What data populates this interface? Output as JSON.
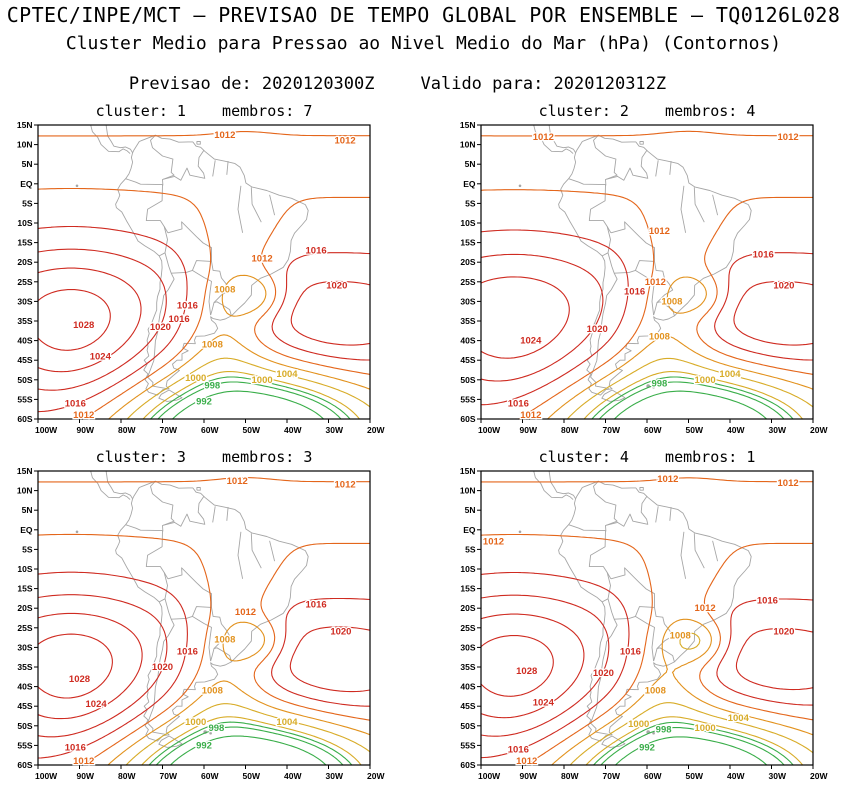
{
  "header": {
    "title": "CPTEC/INPE/MCT — PREVISAO DE TEMPO GLOBAL POR ENSEMBLE — TQ0126L028",
    "subtitle": "Cluster Medio para Pressao ao Nivel Medio do Mar (hPa) (Contornos)",
    "init_label": "Previsao de: 2020120300Z",
    "valid_label": "Valido para: 2020120312Z"
  },
  "chart_data": {
    "type": "contour-map",
    "variable": "Pressao ao Nivel Medio do Mar (hPa)",
    "region": {
      "lon_min": -100,
      "lon_max": -20,
      "lat_min": -60,
      "lat_max": 15
    },
    "map_region": "South America",
    "x_ticks": [
      "100W",
      "90W",
      "80W",
      "70W",
      "60W",
      "50W",
      "40W",
      "30W",
      "20W"
    ],
    "y_ticks": [
      "15N",
      "10N",
      "5N",
      "EQ",
      "5S",
      "10S",
      "15S",
      "20S",
      "25S",
      "30S",
      "35S",
      "40S",
      "45S",
      "50S",
      "55S",
      "60S"
    ],
    "contour_levels": [
      992,
      996,
      998,
      1000,
      1004,
      1008,
      1012,
      1016,
      1020,
      1024,
      1028
    ],
    "level_colors": {
      "992": "#3aae4a",
      "996": "#3aae4a",
      "998": "#3aae4a",
      "1000": "#d8ac28",
      "1004": "#d8ac28",
      "1008": "#e2921e",
      "1012": "#e4661b",
      "1016": "#cf2b21",
      "1020": "#cf2b21",
      "1024": "#cf2b21",
      "1028": "#cf2b21"
    },
    "map_color": "#a6a6a6",
    "panels": [
      {
        "title": "cluster: 1    membros: 7",
        "field": {
          "pac": 16.5,
          "atl": 10,
          "south": -36,
          "selow": -9,
          "tr2": -7,
          "trough": -3
        },
        "labels": [
          {
            "v": "1012",
            "lon": -55,
            "lat": 12.5
          },
          {
            "v": "1012",
            "lon": -26,
            "lat": 11
          },
          {
            "v": "1016",
            "lon": -33,
            "lat": -17
          },
          {
            "v": "1012",
            "lon": -46,
            "lat": -19
          },
          {
            "v": "1008",
            "lon": -55,
            "lat": -27
          },
          {
            "v": "1020",
            "lon": -28,
            "lat": -26
          },
          {
            "v": "1016",
            "lon": -64,
            "lat": -31
          },
          {
            "v": "1028",
            "lon": -89,
            "lat": -36
          },
          {
            "v": "1016",
            "lon": -66,
            "lat": -34.5
          },
          {
            "v": "1020",
            "lon": -70.5,
            "lat": -36.5
          },
          {
            "v": "1008",
            "lon": -58,
            "lat": -41
          },
          {
            "v": "1024",
            "lon": -85,
            "lat": -44
          },
          {
            "v": "1000",
            "lon": -62,
            "lat": -49.5
          },
          {
            "v": "1004",
            "lon": -40,
            "lat": -48.5
          },
          {
            "v": "998",
            "lon": -58,
            "lat": -51.5
          },
          {
            "v": "1000",
            "lon": -46,
            "lat": -50
          },
          {
            "v": "992",
            "lon": -60,
            "lat": -55.5
          },
          {
            "v": "1016",
            "lon": -91,
            "lat": -56
          },
          {
            "v": "1012",
            "lon": -89,
            "lat": -59
          }
        ]
      },
      {
        "title": "cluster: 2    membros: 4",
        "field": {
          "pac": 13.5,
          "atl": 10,
          "south": -36,
          "selow": -8,
          "tr2": -6.5,
          "trough": -3.2
        },
        "labels": [
          {
            "v": "1012",
            "lon": -85,
            "lat": 12
          },
          {
            "v": "1012",
            "lon": -26,
            "lat": 12
          },
          {
            "v": "1012",
            "lon": -57,
            "lat": -12
          },
          {
            "v": "1016",
            "lon": -32,
            "lat": -18
          },
          {
            "v": "1012",
            "lon": -58,
            "lat": -25
          },
          {
            "v": "1016",
            "lon": -63,
            "lat": -27.5
          },
          {
            "v": "1008",
            "lon": -54,
            "lat": -30
          },
          {
            "v": "1020",
            "lon": -27,
            "lat": -26
          },
          {
            "v": "1024",
            "lon": -88,
            "lat": -40
          },
          {
            "v": "1008",
            "lon": -57,
            "lat": -39
          },
          {
            "v": "1020",
            "lon": -72,
            "lat": -37
          },
          {
            "v": "1004",
            "lon": -40,
            "lat": -48.5
          },
          {
            "v": "998",
            "lon": -57,
            "lat": -51
          },
          {
            "v": "1000",
            "lon": -46,
            "lat": -50
          },
          {
            "v": "1016",
            "lon": -91,
            "lat": -56
          },
          {
            "v": "1012",
            "lon": -88,
            "lat": -59
          }
        ]
      },
      {
        "title": "cluster: 3    membros: 3",
        "field": {
          "pac": 16.8,
          "atl": 10.2,
          "south": -37,
          "selow": -8.5,
          "tr2": -7,
          "trough": -3
        },
        "labels": [
          {
            "v": "1012",
            "lon": -52,
            "lat": 12.5
          },
          {
            "v": "1012",
            "lon": -26,
            "lat": 11.5
          },
          {
            "v": "1016",
            "lon": -33,
            "lat": -19
          },
          {
            "v": "1012",
            "lon": -50,
            "lat": -21
          },
          {
            "v": "1008",
            "lon": -55,
            "lat": -28
          },
          {
            "v": "1020",
            "lon": -27,
            "lat": -26
          },
          {
            "v": "1016",
            "lon": -64,
            "lat": -31
          },
          {
            "v": "1020",
            "lon": -70,
            "lat": -35
          },
          {
            "v": "1028",
            "lon": -90,
            "lat": -38
          },
          {
            "v": "1008",
            "lon": -58,
            "lat": -41
          },
          {
            "v": "1024",
            "lon": -86,
            "lat": -44.5
          },
          {
            "v": "1000",
            "lon": -62,
            "lat": -49
          },
          {
            "v": "1004",
            "lon": -40,
            "lat": -49
          },
          {
            "v": "998",
            "lon": -57,
            "lat": -50.5
          },
          {
            "v": "992",
            "lon": -60,
            "lat": -55
          },
          {
            "v": "1016",
            "lon": -91,
            "lat": -55.5
          },
          {
            "v": "1012",
            "lon": -89,
            "lat": -59
          }
        ]
      },
      {
        "title": "cluster: 4    membros: 1",
        "field": {
          "pac": 16.5,
          "atl": 9.6,
          "south": -36,
          "selow": -10,
          "tr2": -7.5,
          "trough": -2.8
        },
        "labels": [
          {
            "v": "1012",
            "lon": -55,
            "lat": 13
          },
          {
            "v": "1012",
            "lon": -26,
            "lat": 12
          },
          {
            "v": "1012",
            "lon": -97,
            "lat": -3
          },
          {
            "v": "1016",
            "lon": -31,
            "lat": -18
          },
          {
            "v": "1012",
            "lon": -46,
            "lat": -20
          },
          {
            "v": "1008",
            "lon": -52,
            "lat": -27
          },
          {
            "v": "1020",
            "lon": -27,
            "lat": -26
          },
          {
            "v": "1016",
            "lon": -64,
            "lat": -31
          },
          {
            "v": "1028",
            "lon": -89,
            "lat": -36
          },
          {
            "v": "1020",
            "lon": -70.5,
            "lat": -36.5
          },
          {
            "v": "1008",
            "lon": -58,
            "lat": -41
          },
          {
            "v": "1024",
            "lon": -85,
            "lat": -44
          },
          {
            "v": "1000",
            "lon": -62,
            "lat": -49.5
          },
          {
            "v": "998",
            "lon": -56,
            "lat": -51
          },
          {
            "v": "1004",
            "lon": -38,
            "lat": -48
          },
          {
            "v": "1000",
            "lon": -46,
            "lat": -50.5
          },
          {
            "v": "992",
            "lon": -60,
            "lat": -55.5
          },
          {
            "v": "1016",
            "lon": -91,
            "lat": -56
          },
          {
            "v": "1012",
            "lon": -89,
            "lat": -59
          }
        ]
      }
    ]
  }
}
